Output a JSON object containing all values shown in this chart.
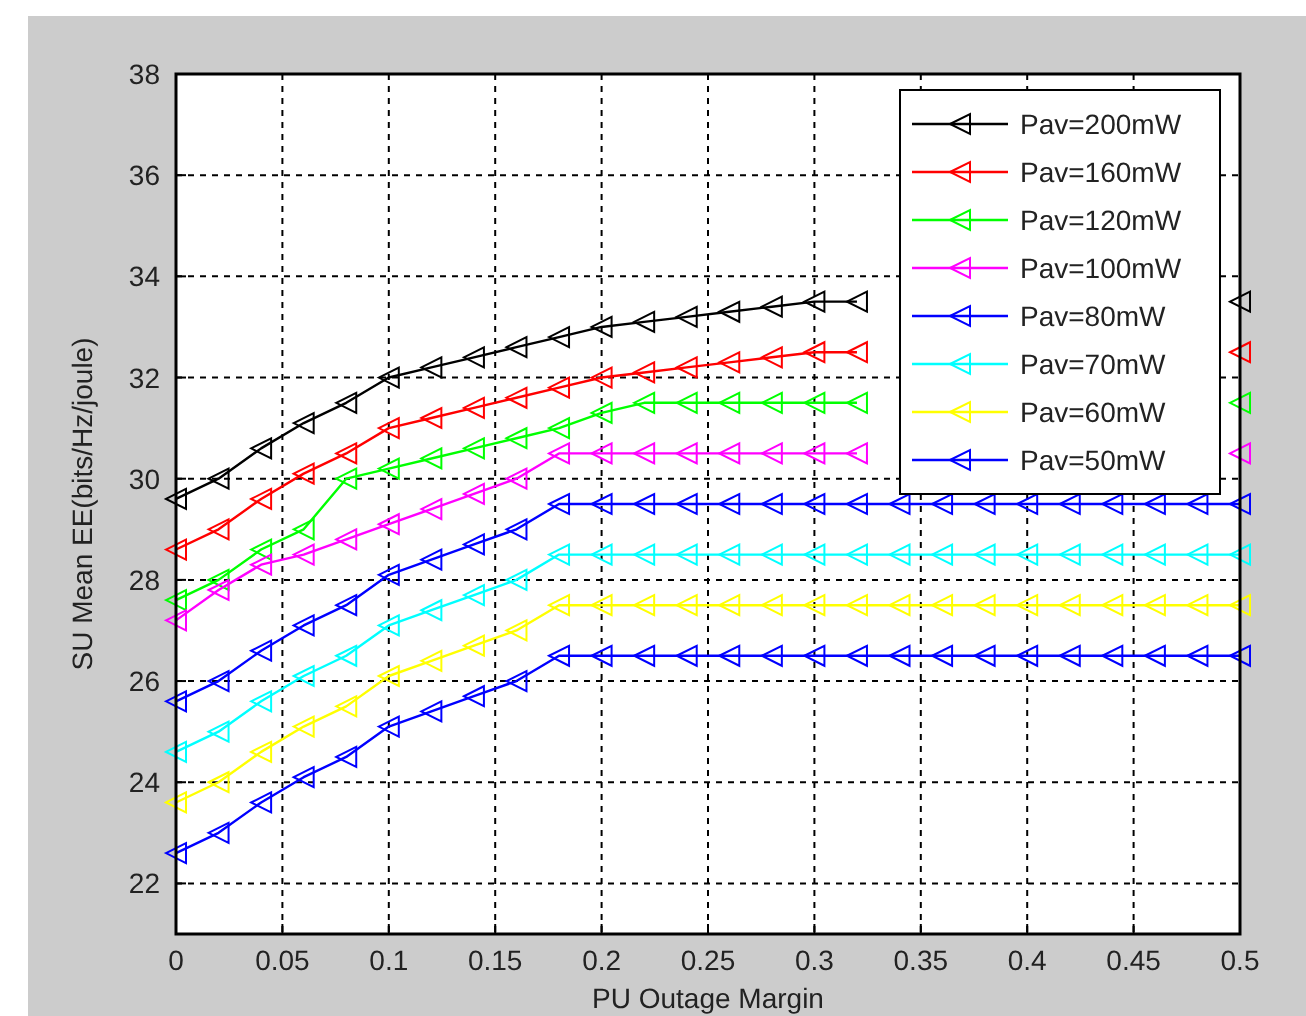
{
  "chart_data": {
    "type": "line",
    "xlabel": "PU Outage Margin",
    "ylabel": "SU Mean EE(bits/Hz/joule)",
    "x": [
      0,
      0.02,
      0.04,
      0.06,
      0.08,
      0.1,
      0.12,
      0.14,
      0.16,
      0.18,
      0.2,
      0.22,
      0.24,
      0.26,
      0.28,
      0.3,
      0.32,
      0.34,
      0.36,
      0.38,
      0.4,
      0.42,
      0.44,
      0.46,
      0.48,
      0.5
    ],
    "xlim": [
      0,
      0.5
    ],
    "xticks": [
      0,
      0.05,
      0.1,
      0.15,
      0.2,
      0.25,
      0.3,
      0.35,
      0.4,
      0.45,
      0.5
    ],
    "ylim": [
      21,
      38
    ],
    "yticks": [
      22,
      24,
      26,
      28,
      30,
      32,
      34,
      36,
      38
    ],
    "grid": true,
    "legend": "top right",
    "marker": "triangle",
    "line_style": "solid",
    "series": [
      {
        "name": "Pav=200mW",
        "color": "#000000",
        "values": [
          29.6,
          30.0,
          30.6,
          31.1,
          31.5,
          32.0,
          32.2,
          32.4,
          32.6,
          32.8,
          33.0,
          33.1,
          33.2,
          33.3,
          33.4,
          33.5,
          33.5,
          null,
          null,
          null,
          null,
          null,
          null,
          null,
          null,
          33.5
        ]
      },
      {
        "name": "Pav=160mW",
        "color": "#ff0000",
        "values": [
          28.6,
          29.0,
          29.6,
          30.1,
          30.5,
          31.0,
          31.2,
          31.4,
          31.6,
          31.8,
          32.0,
          32.1,
          32.2,
          32.3,
          32.4,
          32.5,
          32.5,
          null,
          null,
          null,
          null,
          null,
          null,
          null,
          null,
          32.5
        ]
      },
      {
        "name": "Pav=120mW",
        "color": "#00ff00",
        "values": [
          27.6,
          28.0,
          28.6,
          29.0,
          30.0,
          30.2,
          30.4,
          30.6,
          30.8,
          31.0,
          31.3,
          31.5,
          31.5,
          31.5,
          31.5,
          31.5,
          31.5,
          null,
          null,
          null,
          null,
          null,
          null,
          null,
          null,
          31.5
        ]
      },
      {
        "name": "Pav=100mW",
        "color": "#ff00ff",
        "values": [
          27.2,
          27.8,
          28.3,
          28.5,
          28.8,
          29.1,
          29.4,
          29.7,
          30.0,
          30.5,
          30.5,
          30.5,
          30.5,
          30.5,
          30.5,
          30.5,
          30.5,
          null,
          null,
          null,
          null,
          null,
          null,
          null,
          null,
          30.5
        ]
      },
      {
        "name": "Pav=80mW",
        "color": "#0000ff",
        "values": [
          25.6,
          26.0,
          26.6,
          27.1,
          27.5,
          28.1,
          28.4,
          28.7,
          29.0,
          29.5,
          29.5,
          29.5,
          29.5,
          29.5,
          29.5,
          29.5,
          29.5,
          29.5,
          29.5,
          29.5,
          29.5,
          29.5,
          29.5,
          29.5,
          29.5,
          29.5
        ]
      },
      {
        "name": "Pav=70mW",
        "color": "#00ffff",
        "values": [
          24.6,
          25.0,
          25.6,
          26.1,
          26.5,
          27.1,
          27.4,
          27.7,
          28.0,
          28.5,
          28.5,
          28.5,
          28.5,
          28.5,
          28.5,
          28.5,
          28.5,
          28.5,
          28.5,
          28.5,
          28.5,
          28.5,
          28.5,
          28.5,
          28.5,
          28.5
        ]
      },
      {
        "name": "Pav=60mW",
        "color": "#ffff00",
        "values": [
          23.6,
          24.0,
          24.6,
          25.1,
          25.5,
          26.1,
          26.4,
          26.7,
          27.0,
          27.5,
          27.5,
          27.5,
          27.5,
          27.5,
          27.5,
          27.5,
          27.5,
          27.5,
          27.5,
          27.5,
          27.5,
          27.5,
          27.5,
          27.5,
          27.5,
          27.5
        ]
      },
      {
        "name": "Pav=50mW",
        "color": "#0000ff",
        "values": [
          22.6,
          23.0,
          23.6,
          24.1,
          24.5,
          25.1,
          25.4,
          25.7,
          26.0,
          26.5,
          26.5,
          26.5,
          26.5,
          26.5,
          26.5,
          26.5,
          26.5,
          26.5,
          26.5,
          26.5,
          26.5,
          26.5,
          26.5,
          26.5,
          26.5,
          26.5
        ]
      }
    ]
  }
}
